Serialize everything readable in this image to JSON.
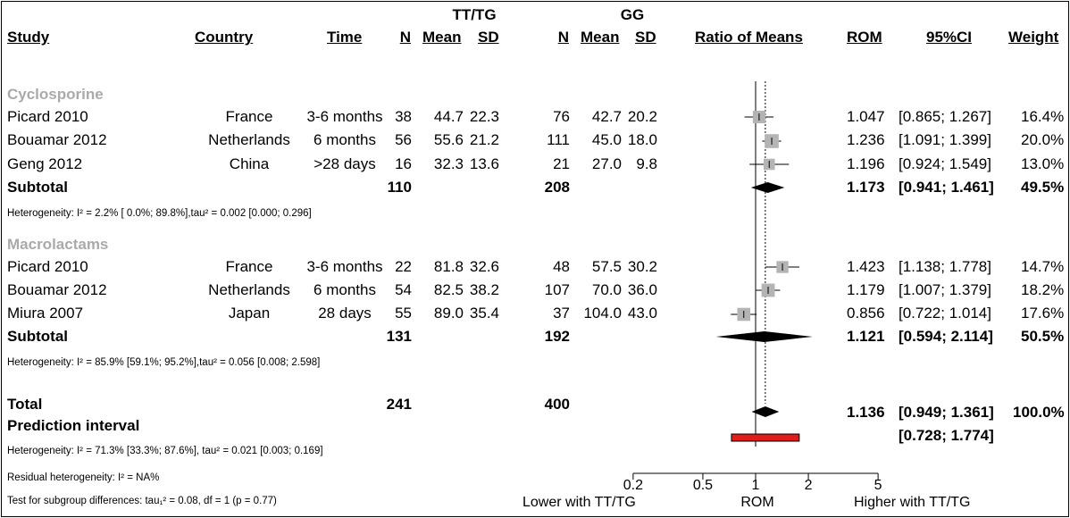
{
  "chart_data": {
    "type": "forest",
    "headers": {
      "study": "Study",
      "country": "Country",
      "time": "Time",
      "group1": "TT/TG",
      "group2": "GG",
      "n": "N",
      "mean": "Mean",
      "sd": "SD",
      "plot": "Ratio of Means",
      "rom": "ROM",
      "ci": "95%CI",
      "weight": "Weight"
    },
    "subgroups": [
      {
        "name": "Cyclosporine",
        "studies": [
          {
            "study": "Picard 2010",
            "country": "France",
            "time": "3-6 months",
            "n1": "38",
            "mean1": "44.7",
            "sd1": "22.3",
            "n2": "76",
            "mean2": "42.7",
            "sd2": "20.2",
            "rom_text": "1.047",
            "ci_text": "[0.865; 1.267]",
            "weight_text": "16.4%",
            "rom": 1.047,
            "lower": 0.865,
            "upper": 1.267,
            "weight": 16.4
          },
          {
            "study": "Bouamar 2012",
            "country": "Netherlands",
            "time": "6 months",
            "n1": "56",
            "mean1": "55.6",
            "sd1": "21.2",
            "n2": "111",
            "mean2": "45.0",
            "sd2": "18.0",
            "rom_text": "1.236",
            "ci_text": "[1.091; 1.399]",
            "weight_text": "20.0%",
            "rom": 1.236,
            "lower": 1.091,
            "upper": 1.399,
            "weight": 20.0
          },
          {
            "study": "Geng 2012",
            "country": "China",
            "time": ">28 days",
            "n1": "16",
            "mean1": "32.3",
            "sd1": "13.6",
            "n2": "21",
            "mean2": "27.0",
            "sd2": "9.8",
            "rom_text": "1.196",
            "ci_text": "[0.924; 1.549]",
            "weight_text": "13.0%",
            "rom": 1.196,
            "lower": 0.924,
            "upper": 1.549,
            "weight": 13.0
          }
        ],
        "subtotal": {
          "label": "Subtotal",
          "n1": "110",
          "n2": "208",
          "rom_text": "1.173",
          "ci_text": "[0.941; 1.461]",
          "weight_text": "49.5%",
          "rom": 1.173,
          "lower": 0.941,
          "upper": 1.461
        },
        "heterogeneity": "Heterogeneity: I² = 2.2% [ 0.0%; 89.8%],tau² = 0.002 [0.000; 0.296]"
      },
      {
        "name": "Macrolactams",
        "studies": [
          {
            "study": "Picard 2010",
            "country": "France",
            "time": "3-6 months",
            "n1": "22",
            "mean1": "81.8",
            "sd1": "32.6",
            "n2": "48",
            "mean2": "57.5",
            "sd2": "30.2",
            "rom_text": "1.423",
            "ci_text": "[1.138; 1.778]",
            "weight_text": "14.7%",
            "rom": 1.423,
            "lower": 1.138,
            "upper": 1.778,
            "weight": 14.7
          },
          {
            "study": "Bouamar 2012",
            "country": "Netherlands",
            "time": "6 months",
            "n1": "54",
            "mean1": "82.5",
            "sd1": "38.2",
            "n2": "107",
            "mean2": "70.0",
            "sd2": "36.0",
            "rom_text": "1.179",
            "ci_text": "[1.007; 1.379]",
            "weight_text": "18.2%",
            "rom": 1.179,
            "lower": 1.007,
            "upper": 1.379,
            "weight": 18.2
          },
          {
            "study": "Miura 2007",
            "country": "Japan",
            "time": "28 days",
            "n1": "55",
            "mean1": "89.0",
            "sd1": "35.4",
            "n2": "37",
            "mean2": "104.0",
            "sd2": "43.0",
            "rom_text": "0.856",
            "ci_text": "[0.722; 1.014]",
            "weight_text": "17.6%",
            "rom": 0.856,
            "lower": 0.722,
            "upper": 1.014,
            "weight": 17.6
          }
        ],
        "subtotal": {
          "label": "Subtotal",
          "n1": "131",
          "n2": "192",
          "rom_text": "1.121",
          "ci_text": "[0.594; 2.114]",
          "weight_text": "50.5%",
          "rom": 1.121,
          "lower": 0.594,
          "upper": 2.114
        },
        "heterogeneity": "Heterogeneity: I² = 85.9% [59.1%; 95.2%],tau² = 0.056 [0.008; 2.598]"
      }
    ],
    "total": {
      "label": "Total",
      "n1": "241",
      "n2": "400",
      "rom_text": "1.136",
      "ci_text": "[0.949; 1.361]",
      "weight_text": "100.0%",
      "rom": 1.136,
      "lower": 0.949,
      "upper": 1.361
    },
    "prediction": {
      "label": "Prediction interval",
      "ci_text": "[0.728; 1.774]",
      "lower": 0.728,
      "upper": 1.774
    },
    "footer": {
      "heterogeneity": "Heterogeneity: I² = 71.3% [33.3%; 87.6%], tau² = 0.021 [0.003; 0.169]",
      "residual": "Residual heterogeneity: I² = NA%",
      "subgroup_test": "Test for subgroup differences: tau₁² = 0.08, df = 1 (p = 0.77)"
    },
    "axis": {
      "scale": "log",
      "ticks": [
        0.2,
        0.5,
        1,
        2,
        5
      ],
      "tick_labels": [
        "0.2",
        "0.5",
        "1",
        "2",
        "5"
      ],
      "xlabel": "ROM",
      "left_label": "Lower with TT/TG",
      "right_label": "Higher with TT/TG",
      "reference": 1
    }
  }
}
